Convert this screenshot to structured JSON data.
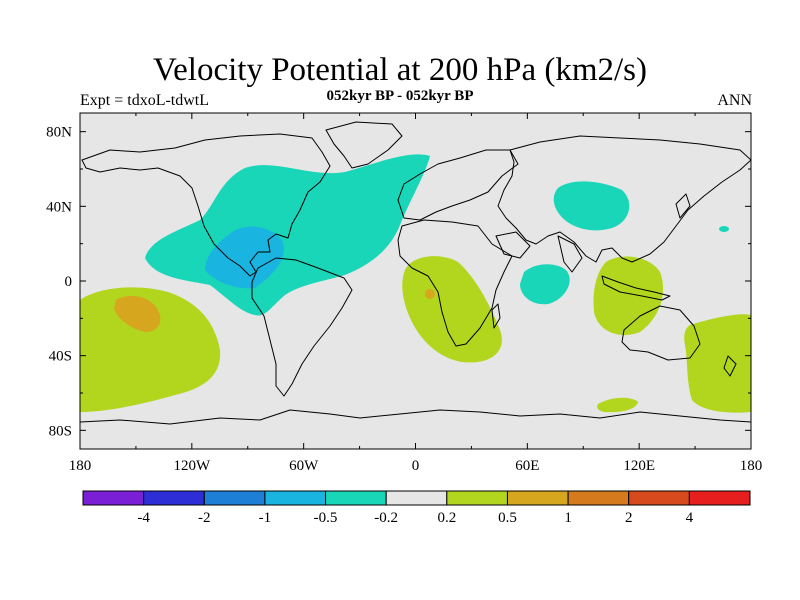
{
  "title": "Velocity Potential at 200 hPa (km2/s)",
  "subtitle": "052kyr BP - 052kyr BP",
  "left_label": "Expt = tdxoL-tdwtL",
  "right_label": "ANN",
  "lat_ticks": [
    {
      "value": 80,
      "label": "80N"
    },
    {
      "value": 40,
      "label": "40N"
    },
    {
      "value": 0,
      "label": "0"
    },
    {
      "value": -40,
      "label": "40S"
    },
    {
      "value": -80,
      "label": "80S"
    }
  ],
  "lon_ticks": [
    {
      "value": -180,
      "label": "180"
    },
    {
      "value": -120,
      "label": "120W"
    },
    {
      "value": -60,
      "label": "60W"
    },
    {
      "value": 0,
      "label": "0"
    },
    {
      "value": 60,
      "label": "60E"
    },
    {
      "value": 120,
      "label": "120E"
    },
    {
      "value": 180,
      "label": "180"
    }
  ],
  "colorbar": {
    "colors": [
      "#7a1fd6",
      "#2e2ed6",
      "#1e7fd6",
      "#19b5e0",
      "#19d6b8",
      "#e6e6e6",
      "#b2d61e",
      "#d6a61e",
      "#d67a1e",
      "#d64a1e",
      "#e61e1e"
    ],
    "labels": [
      "-4",
      "-2",
      "-1",
      "-0.5",
      "-0.2",
      "0.2",
      "0.5",
      "1",
      "2",
      "4"
    ]
  },
  "colors": {
    "background": "#e6e6e6",
    "neg_02": "#19d6b8",
    "neg_05": "#19b5e0",
    "neg_1": "#1e7fd6",
    "pos_02": "#b2d61e",
    "pos_05": "#d6a61e",
    "pos_1": "#d67a1e"
  }
}
